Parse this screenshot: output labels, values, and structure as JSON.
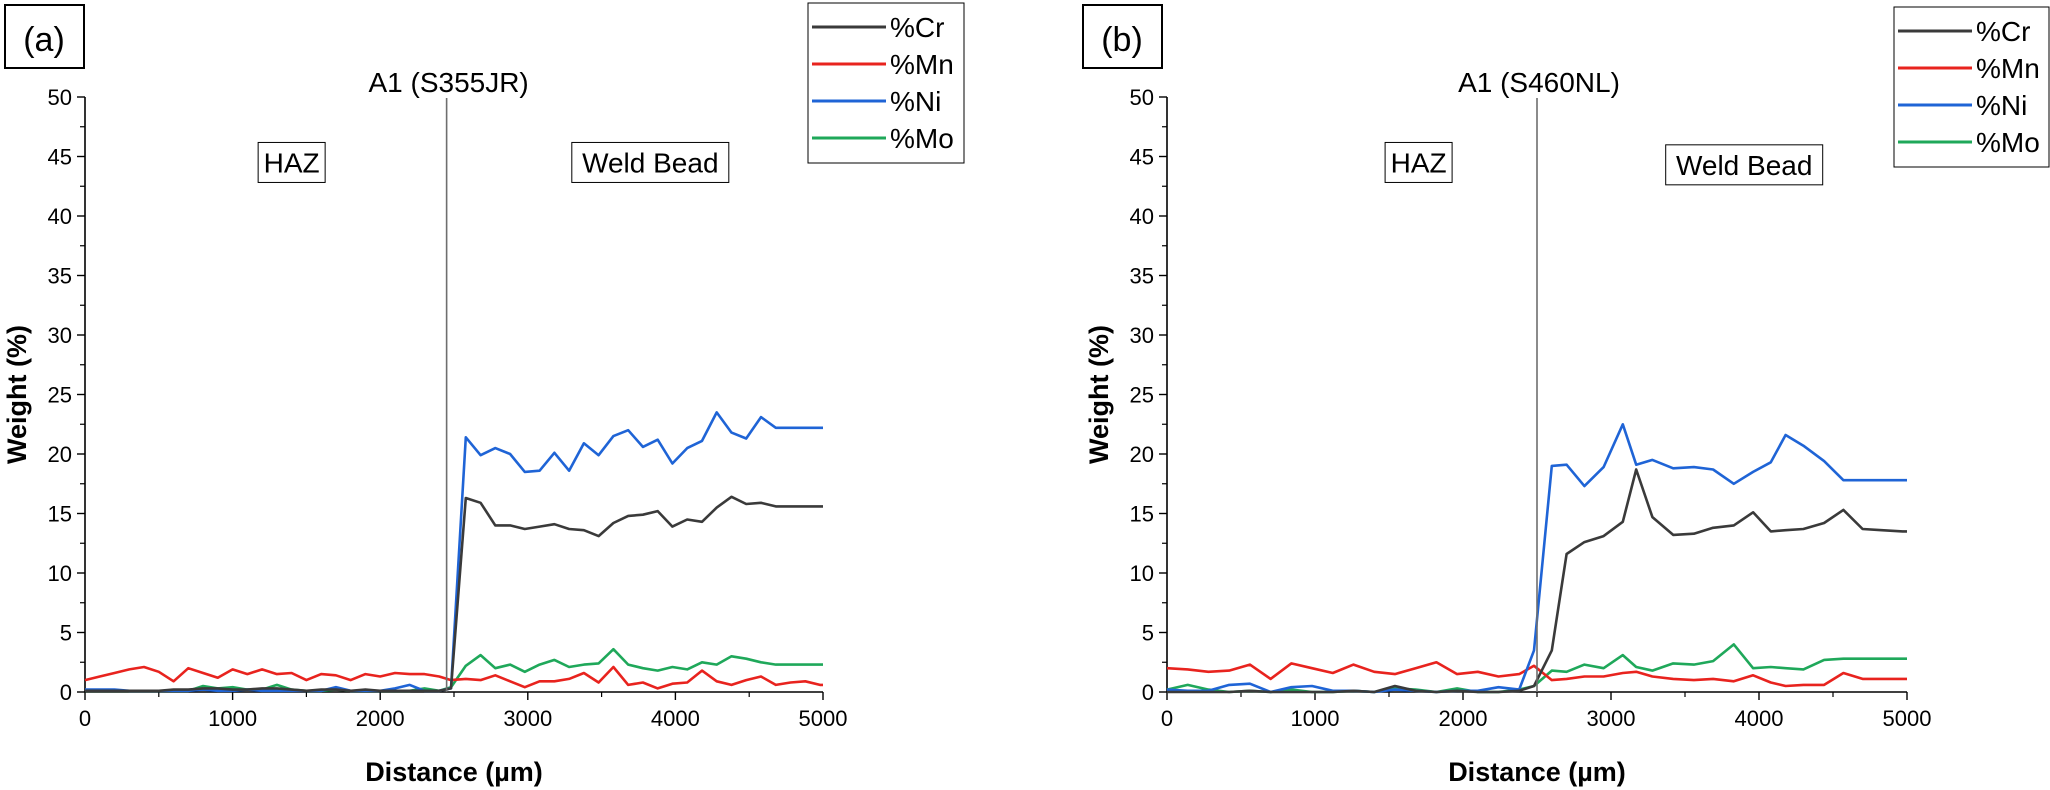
{
  "chart_data": [
    {
      "type": "line",
      "panel_label": "(a)",
      "xlabel": "Distance (µm)",
      "ylabel": "Weight (%)",
      "xlim": [
        0,
        5000
      ],
      "ylim": [
        0,
        50
      ],
      "xticks": [
        0,
        1000,
        2000,
        3000,
        4000,
        5000
      ],
      "yticks": [
        0,
        5,
        10,
        15,
        20,
        25,
        30,
        35,
        40,
        45,
        50
      ],
      "grid": false,
      "legend_position": "top-right",
      "boundary": {
        "x": 2450,
        "label": "A1 (S355JR)"
      },
      "annotations": [
        {
          "text": "HAZ",
          "x": 1400,
          "y": 44.5
        },
        {
          "text": "Weld Bead",
          "x": 3830,
          "y": 44.5
        }
      ],
      "series": [
        {
          "name": "%Cr",
          "color": "#3a3a3a",
          "x": [
            0,
            100,
            200,
            300,
            400,
            500,
            600,
            700,
            800,
            900,
            1000,
            1100,
            1200,
            1300,
            1400,
            1500,
            1600,
            1700,
            1800,
            1900,
            2000,
            2100,
            2200,
            2300,
            2400,
            2480,
            2580,
            2680,
            2780,
            2880,
            2980,
            3080,
            3180,
            3280,
            3380,
            3480,
            3580,
            3680,
            3780,
            3880,
            3980,
            4080,
            4180,
            4280,
            4380,
            4480,
            4580,
            4680,
            4780,
            4880,
            4980,
            5000
          ],
          "y": [
            0.1,
            0.1,
            0.1,
            0.1,
            0.1,
            0.1,
            0.2,
            0.2,
            0.3,
            0.3,
            0.2,
            0.2,
            0.3,
            0.3,
            0.2,
            0.1,
            0.2,
            0.2,
            0.1,
            0.2,
            0.1,
            0.1,
            0.1,
            0.1,
            0.1,
            0.3,
            16.3,
            15.9,
            14.0,
            14.0,
            13.7,
            13.9,
            14.1,
            13.7,
            13.6,
            13.1,
            14.2,
            14.8,
            14.9,
            15.2,
            13.9,
            14.5,
            14.3,
            15.5,
            16.4,
            15.8,
            15.9,
            15.6,
            15.6,
            15.6,
            15.6,
            15.6
          ]
        },
        {
          "name": "%Mn",
          "color": "#e8231e",
          "x": [
            0,
            100,
            200,
            300,
            400,
            500,
            600,
            700,
            800,
            900,
            1000,
            1100,
            1200,
            1300,
            1400,
            1500,
            1600,
            1700,
            1800,
            1900,
            2000,
            2100,
            2200,
            2300,
            2400,
            2480,
            2580,
            2680,
            2780,
            2880,
            2980,
            3080,
            3180,
            3280,
            3380,
            3480,
            3580,
            3680,
            3780,
            3880,
            3980,
            4080,
            4180,
            4280,
            4380,
            4480,
            4580,
            4680,
            4780,
            4880,
            4980,
            5000
          ],
          "y": [
            1.0,
            1.3,
            1.6,
            1.9,
            2.1,
            1.7,
            0.9,
            2.0,
            1.6,
            1.2,
            1.9,
            1.5,
            1.9,
            1.5,
            1.6,
            1.0,
            1.5,
            1.4,
            1.0,
            1.5,
            1.3,
            1.6,
            1.5,
            1.5,
            1.3,
            1.0,
            1.1,
            1.0,
            1.4,
            0.9,
            0.4,
            0.9,
            0.9,
            1.1,
            1.6,
            0.8,
            2.1,
            0.6,
            0.8,
            0.3,
            0.7,
            0.8,
            1.8,
            0.9,
            0.6,
            1.0,
            1.3,
            0.6,
            0.8,
            0.9,
            0.6,
            0.6
          ]
        },
        {
          "name": "%Ni",
          "color": "#1f64d6",
          "x": [
            0,
            100,
            200,
            300,
            400,
            500,
            600,
            700,
            800,
            900,
            1000,
            1100,
            1200,
            1300,
            1400,
            1500,
            1600,
            1700,
            1800,
            1900,
            2000,
            2100,
            2200,
            2300,
            2400,
            2480,
            2580,
            2680,
            2780,
            2880,
            2980,
            3080,
            3180,
            3280,
            3380,
            3480,
            3580,
            3680,
            3780,
            3880,
            3980,
            4080,
            4180,
            4280,
            4380,
            4480,
            4580,
            4680,
            4780,
            4880,
            4980,
            5000
          ],
          "y": [
            0.2,
            0.2,
            0.2,
            0.1,
            0.1,
            0.1,
            0.1,
            0.1,
            0.2,
            0.1,
            0.1,
            0.2,
            0.1,
            0.1,
            0.1,
            0.1,
            0.1,
            0.4,
            0.1,
            0.1,
            0.1,
            0.3,
            0.6,
            0.1,
            0.1,
            0.3,
            21.4,
            19.9,
            20.5,
            20.0,
            18.5,
            18.6,
            20.1,
            18.6,
            20.9,
            19.9,
            21.5,
            22.0,
            20.6,
            21.2,
            19.2,
            20.5,
            21.1,
            23.5,
            21.8,
            21.3,
            23.1,
            22.2,
            22.2,
            22.2,
            22.2,
            22.2
          ]
        },
        {
          "name": "%Mo",
          "color": "#1fa85a",
          "x": [
            0,
            100,
            200,
            300,
            400,
            500,
            600,
            700,
            800,
            900,
            1000,
            1100,
            1200,
            1300,
            1400,
            1500,
            1600,
            1700,
            1800,
            1900,
            2000,
            2100,
            2200,
            2300,
            2400,
            2480,
            2580,
            2680,
            2780,
            2880,
            2980,
            3080,
            3180,
            3280,
            3380,
            3480,
            3580,
            3680,
            3780,
            3880,
            3980,
            4080,
            4180,
            4280,
            4380,
            4480,
            4580,
            4680,
            4780,
            4880,
            4980,
            5000
          ],
          "y": [
            0.1,
            0.1,
            0.1,
            0.1,
            0.1,
            0.1,
            0.1,
            0.1,
            0.5,
            0.3,
            0.4,
            0.2,
            0.2,
            0.6,
            0.2,
            0.1,
            0.1,
            0.2,
            0.1,
            0.1,
            0.1,
            0.1,
            0.1,
            0.3,
            0.1,
            0.4,
            2.2,
            3.1,
            2.0,
            2.3,
            1.7,
            2.3,
            2.7,
            2.1,
            2.3,
            2.4,
            3.6,
            2.3,
            2.0,
            1.8,
            2.1,
            1.9,
            2.5,
            2.3,
            3.0,
            2.8,
            2.5,
            2.3,
            2.3,
            2.3,
            2.3,
            2.3
          ]
        }
      ]
    },
    {
      "type": "line",
      "panel_label": "(b)",
      "xlabel": "Distance (µm)",
      "ylabel": "Weight (%)",
      "xlim": [
        0,
        5000
      ],
      "ylim": [
        0,
        50
      ],
      "xticks": [
        0,
        1000,
        2000,
        3000,
        4000,
        5000
      ],
      "yticks": [
        0,
        5,
        10,
        15,
        20,
        25,
        30,
        35,
        40,
        45,
        50
      ],
      "grid": false,
      "legend_position": "top-right",
      "boundary": {
        "x": 2500,
        "label": "A1 (S460NL)"
      },
      "annotations": [
        {
          "text": "HAZ",
          "x": 1700,
          "y": 44.5
        },
        {
          "text": "Weld Bead",
          "x": 3900,
          "y": 44.3
        }
      ],
      "series": [
        {
          "name": "%Cr",
          "color": "#3a3a3a",
          "x": [
            0,
            140,
            280,
            420,
            560,
            700,
            840,
            980,
            1120,
            1260,
            1400,
            1540,
            1680,
            1820,
            1960,
            2100,
            2240,
            2380,
            2480,
            2600,
            2700,
            2820,
            2950,
            3080,
            3170,
            3280,
            3420,
            3560,
            3690,
            3830,
            3960,
            4080,
            4180,
            4300,
            4440,
            4570,
            4700,
            4830,
            4970,
            5000
          ],
          "y": [
            0.0,
            0.0,
            0.0,
            0.0,
            0.1,
            0.0,
            0.0,
            0.0,
            0.0,
            0.1,
            0.0,
            0.5,
            0.1,
            0.0,
            0.1,
            0.0,
            0.0,
            0.1,
            0.5,
            3.5,
            11.6,
            12.6,
            13.1,
            14.3,
            18.7,
            14.7,
            13.2,
            13.3,
            13.8,
            14.0,
            15.1,
            13.5,
            13.6,
            13.7,
            14.2,
            15.3,
            13.7,
            13.6,
            13.5,
            13.5
          ]
        },
        {
          "name": "%Mn",
          "color": "#e8231e",
          "x": [
            0,
            140,
            280,
            420,
            560,
            700,
            840,
            980,
            1120,
            1260,
            1400,
            1540,
            1680,
            1820,
            1960,
            2100,
            2240,
            2380,
            2480,
            2600,
            2700,
            2820,
            2950,
            3080,
            3170,
            3280,
            3420,
            3560,
            3690,
            3830,
            3960,
            4080,
            4180,
            4300,
            4440,
            4570,
            4700,
            4830,
            4970,
            5000
          ],
          "y": [
            2.0,
            1.9,
            1.7,
            1.8,
            2.3,
            1.1,
            2.4,
            2.0,
            1.6,
            2.3,
            1.7,
            1.5,
            2.0,
            2.5,
            1.5,
            1.7,
            1.3,
            1.5,
            2.2,
            1.0,
            1.1,
            1.3,
            1.3,
            1.6,
            1.7,
            1.3,
            1.1,
            1.0,
            1.1,
            0.9,
            1.4,
            0.8,
            0.5,
            0.6,
            0.6,
            1.6,
            1.1,
            1.1,
            1.1,
            1.1
          ]
        },
        {
          "name": "%Ni",
          "color": "#1f64d6",
          "x": [
            0,
            140,
            280,
            420,
            560,
            700,
            840,
            980,
            1120,
            1260,
            1400,
            1540,
            1680,
            1820,
            1960,
            2100,
            2240,
            2380,
            2480,
            2600,
            2700,
            2820,
            2950,
            3080,
            3170,
            3280,
            3420,
            3560,
            3690,
            3830,
            3960,
            4080,
            4180,
            4300,
            4440,
            4570,
            4700,
            4830,
            4970,
            5000
          ],
          "y": [
            0.2,
            0.1,
            0.1,
            0.6,
            0.7,
            0.0,
            0.4,
            0.5,
            0.1,
            0.1,
            0.0,
            0.2,
            0.1,
            0.0,
            0.1,
            0.1,
            0.4,
            0.2,
            3.5,
            19.0,
            19.1,
            17.3,
            18.9,
            22.5,
            19.1,
            19.5,
            18.8,
            18.9,
            18.7,
            17.5,
            18.5,
            19.3,
            21.6,
            20.7,
            19.4,
            17.8,
            17.8,
            17.8,
            17.8,
            17.8
          ]
        },
        {
          "name": "%Mo",
          "color": "#1fa85a",
          "x": [
            0,
            140,
            280,
            420,
            560,
            700,
            840,
            980,
            1120,
            1260,
            1400,
            1540,
            1680,
            1820,
            1960,
            2100,
            2240,
            2380,
            2480,
            2600,
            2700,
            2820,
            2950,
            3080,
            3170,
            3280,
            3420,
            3560,
            3690,
            3830,
            3960,
            4080,
            4180,
            4300,
            4440,
            4570,
            4700,
            4830,
            4970,
            5000
          ],
          "y": [
            0.2,
            0.6,
            0.2,
            0.0,
            0.1,
            0.0,
            0.2,
            0.0,
            0.0,
            0.1,
            0.0,
            0.3,
            0.2,
            0.0,
            0.3,
            0.0,
            0.0,
            0.2,
            0.5,
            1.8,
            1.7,
            2.3,
            2.0,
            3.1,
            2.1,
            1.8,
            2.4,
            2.3,
            2.6,
            4.0,
            2.0,
            2.1,
            2.0,
            1.9,
            2.7,
            2.8,
            2.8,
            2.8,
            2.8,
            2.8
          ]
        }
      ]
    }
  ]
}
